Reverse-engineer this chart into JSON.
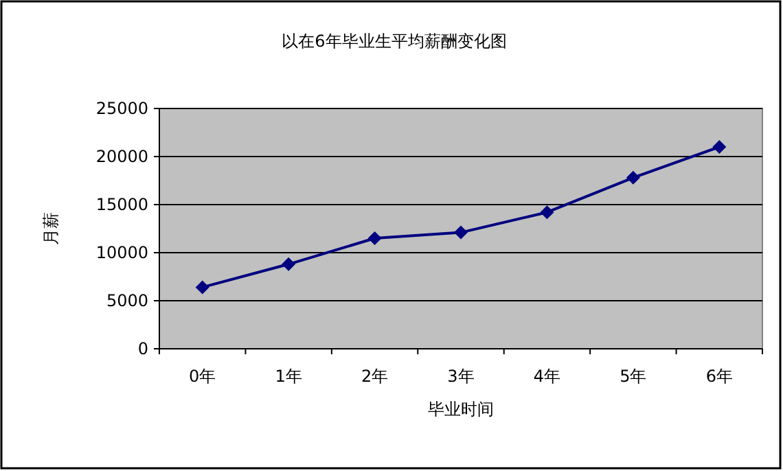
{
  "chart_data": {
    "type": "line",
    "title": "以在6年毕业生平均薪酬变化图",
    "xlabel": "毕业时间",
    "ylabel": "月薪",
    "categories": [
      "0年",
      "1年",
      "2年",
      "3年",
      "4年",
      "5年",
      "6年"
    ],
    "series": [
      {
        "color": "#000080",
        "values": [
          6400,
          8800,
          11500,
          12100,
          14200,
          17800,
          21000
        ]
      }
    ],
    "ylim": [
      0,
      25000
    ],
    "yticks": [
      0,
      5000,
      10000,
      15000,
      20000,
      25000
    ],
    "grid": "y",
    "marker": "diamond",
    "line_style": "solid"
  }
}
